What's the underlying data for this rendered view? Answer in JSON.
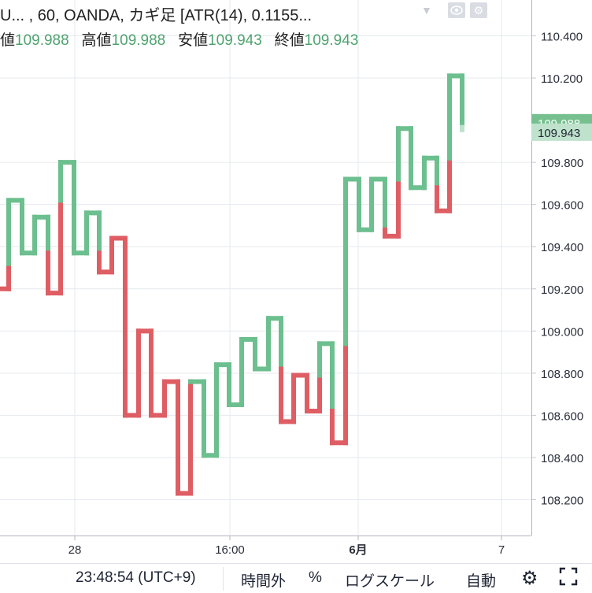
{
  "legend": {
    "title": "U... , 60, OANDA, カギ足 [ATR(14), 0.1155...",
    "open_label": "値",
    "open_value": "109.988",
    "high_label": "高値",
    "high_value": "109.988",
    "low_label": "安値",
    "low_value": "109.943",
    "close_label": "終値",
    "close_value": "109.943"
  },
  "bottom_bar": {
    "clock": "23:48:54 (UTC+9)",
    "session": "時間外",
    "percent": "%",
    "log_scale": "ログスケール",
    "auto": "自動"
  },
  "colors": {
    "up": "#6cbf8e",
    "down": "#de5e64",
    "last_price": "#76c08f",
    "grid": "#e6eaee"
  },
  "chart_data": {
    "type": "kagi",
    "y_range": [
      108.03,
      110.57
    ],
    "y_ticks": [
      "110.400",
      "110.200",
      "109.800",
      "109.600",
      "109.400",
      "109.200",
      "109.000",
      "108.800",
      "108.600",
      "108.400",
      "108.200"
    ],
    "x_ticks": [
      {
        "label": "28",
        "bold": false
      },
      {
        "label": "16:00",
        "bold": false
      },
      {
        "label": "6月",
        "bold": true
      },
      {
        "label": "7",
        "bold": false
      }
    ],
    "price_labels": [
      {
        "text": "109.988",
        "value": 109.988
      },
      {
        "text": "109.943",
        "value": 109.943
      }
    ],
    "kagi": [
      {
        "x": 0,
        "y": 109.2,
        "c": "down"
      },
      {
        "x": 11,
        "y": 109.2,
        "c": "down"
      },
      {
        "x": 11,
        "y": 109.32,
        "c": "down"
      },
      {
        "x": 11,
        "y": 109.62,
        "c": "up"
      },
      {
        "x": 28,
        "y": 109.62,
        "c": "up"
      },
      {
        "x": 28,
        "y": 109.37,
        "c": "up"
      },
      {
        "x": 44,
        "y": 109.37,
        "c": "up"
      },
      {
        "x": 44,
        "y": 109.54,
        "c": "up"
      },
      {
        "x": 61,
        "y": 109.54,
        "c": "up"
      },
      {
        "x": 61,
        "y": 109.37,
        "c": "up"
      },
      {
        "x": 61,
        "y": 109.18,
        "c": "down"
      },
      {
        "x": 77,
        "y": 109.18,
        "c": "down"
      },
      {
        "x": 77,
        "y": 109.62,
        "c": "down"
      },
      {
        "x": 77,
        "y": 109.8,
        "c": "up"
      },
      {
        "x": 94,
        "y": 109.8,
        "c": "up"
      },
      {
        "x": 94,
        "y": 109.37,
        "c": "up"
      },
      {
        "x": 110,
        "y": 109.37,
        "c": "up"
      },
      {
        "x": 110,
        "y": 109.56,
        "c": "up"
      },
      {
        "x": 126,
        "y": 109.56,
        "c": "up"
      },
      {
        "x": 126,
        "y": 109.37,
        "c": "up"
      },
      {
        "x": 126,
        "y": 109.28,
        "c": "down"
      },
      {
        "x": 142,
        "y": 109.28,
        "c": "down"
      },
      {
        "x": 142,
        "y": 109.44,
        "c": "down"
      },
      {
        "x": 159,
        "y": 109.44,
        "c": "down"
      },
      {
        "x": 159,
        "y": 108.6,
        "c": "down"
      },
      {
        "x": 176,
        "y": 108.6,
        "c": "down"
      },
      {
        "x": 176,
        "y": 109.0,
        "c": "down"
      },
      {
        "x": 192,
        "y": 109.0,
        "c": "down"
      },
      {
        "x": 192,
        "y": 108.6,
        "c": "down"
      },
      {
        "x": 209,
        "y": 108.6,
        "c": "down"
      },
      {
        "x": 209,
        "y": 108.76,
        "c": "down"
      },
      {
        "x": 226,
        "y": 108.76,
        "c": "down"
      },
      {
        "x": 226,
        "y": 108.23,
        "c": "down"
      },
      {
        "x": 242,
        "y": 108.23,
        "c": "down"
      },
      {
        "x": 242,
        "y": 108.76,
        "c": "down"
      },
      {
        "x": 259,
        "y": 108.76,
        "c": "up"
      },
      {
        "x": 259,
        "y": 108.41,
        "c": "up"
      },
      {
        "x": 275,
        "y": 108.41,
        "c": "up"
      },
      {
        "x": 275,
        "y": 108.84,
        "c": "up"
      },
      {
        "x": 291,
        "y": 108.84,
        "c": "up"
      },
      {
        "x": 291,
        "y": 108.65,
        "c": "up"
      },
      {
        "x": 307,
        "y": 108.65,
        "c": "up"
      },
      {
        "x": 307,
        "y": 108.96,
        "c": "up"
      },
      {
        "x": 324,
        "y": 108.96,
        "c": "up"
      },
      {
        "x": 324,
        "y": 108.82,
        "c": "up"
      },
      {
        "x": 341,
        "y": 108.82,
        "c": "up"
      },
      {
        "x": 341,
        "y": 109.06,
        "c": "up"
      },
      {
        "x": 357,
        "y": 109.06,
        "c": "up"
      },
      {
        "x": 357,
        "y": 108.82,
        "c": "up"
      },
      {
        "x": 357,
        "y": 108.57,
        "c": "down"
      },
      {
        "x": 373,
        "y": 108.57,
        "c": "down"
      },
      {
        "x": 373,
        "y": 108.79,
        "c": "down"
      },
      {
        "x": 390,
        "y": 108.79,
        "c": "down"
      },
      {
        "x": 390,
        "y": 108.62,
        "c": "down"
      },
      {
        "x": 406,
        "y": 108.62,
        "c": "down"
      },
      {
        "x": 406,
        "y": 108.79,
        "c": "down"
      },
      {
        "x": 406,
        "y": 108.94,
        "c": "up"
      },
      {
        "x": 422,
        "y": 108.94,
        "c": "up"
      },
      {
        "x": 422,
        "y": 108.62,
        "c": "up"
      },
      {
        "x": 422,
        "y": 108.47,
        "c": "down"
      },
      {
        "x": 439,
        "y": 108.47,
        "c": "down"
      },
      {
        "x": 439,
        "y": 108.94,
        "c": "down"
      },
      {
        "x": 439,
        "y": 109.72,
        "c": "up"
      },
      {
        "x": 456,
        "y": 109.72,
        "c": "up"
      },
      {
        "x": 456,
        "y": 109.48,
        "c": "up"
      },
      {
        "x": 472,
        "y": 109.48,
        "c": "up"
      },
      {
        "x": 472,
        "y": 109.72,
        "c": "up"
      },
      {
        "x": 489,
        "y": 109.72,
        "c": "up"
      },
      {
        "x": 489,
        "y": 109.48,
        "c": "up"
      },
      {
        "x": 489,
        "y": 109.45,
        "c": "down"
      },
      {
        "x": 506,
        "y": 109.45,
        "c": "down"
      },
      {
        "x": 506,
        "y": 109.72,
        "c": "down"
      },
      {
        "x": 506,
        "y": 109.96,
        "c": "up"
      },
      {
        "x": 522,
        "y": 109.96,
        "c": "up"
      },
      {
        "x": 522,
        "y": 109.68,
        "c": "up"
      },
      {
        "x": 539,
        "y": 109.68,
        "c": "up"
      },
      {
        "x": 539,
        "y": 109.82,
        "c": "up"
      },
      {
        "x": 555,
        "y": 109.82,
        "c": "up"
      },
      {
        "x": 555,
        "y": 109.68,
        "c": "up"
      },
      {
        "x": 555,
        "y": 109.57,
        "c": "down"
      },
      {
        "x": 571,
        "y": 109.57,
        "c": "down"
      },
      {
        "x": 571,
        "y": 109.82,
        "c": "down"
      },
      {
        "x": 571,
        "y": 110.21,
        "c": "up"
      },
      {
        "x": 587,
        "y": 110.21,
        "c": "up"
      },
      {
        "x": 587,
        "y": 109.988,
        "c": "up"
      }
    ],
    "pending_segment": {
      "x": 587,
      "from": 109.988,
      "to": 109.943
    }
  }
}
